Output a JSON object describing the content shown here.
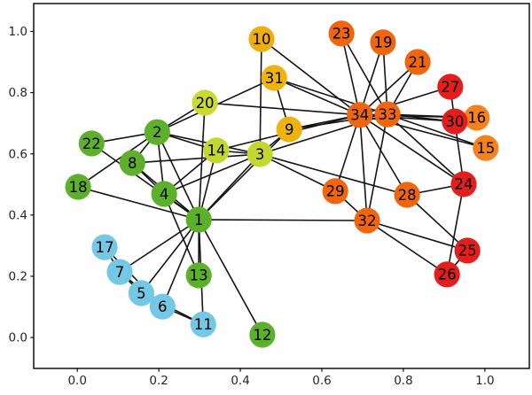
{
  "figure": {
    "background": "#ffffff",
    "axes_color": "#000000",
    "tick_label_color": "#262626"
  },
  "chart_data": {
    "type": "scatter",
    "subtype": "network_graph",
    "title": "",
    "xlabel": "",
    "ylabel": "",
    "grid": false,
    "legend": "none",
    "xlim": [
      -0.107,
      1.109
    ],
    "ylim": [
      -0.101,
      1.091
    ],
    "x_tick_values": [
      0.0,
      0.2,
      0.4,
      0.6,
      0.8,
      1.0
    ],
    "x_tick_labels": [
      "0.0",
      "0.2",
      "0.4",
      "0.6",
      "0.8",
      "1.0"
    ],
    "y_tick_values": [
      0.0,
      0.2,
      0.4,
      0.6,
      0.8,
      1.0
    ],
    "y_tick_labels": [
      "0.0",
      "0.2",
      "0.4",
      "0.6",
      "0.8",
      "1.0"
    ],
    "edge_color": "#141414",
    "node_label_color": "#000000",
    "nodes": [
      {
        "id": 1,
        "label": "1",
        "x": 0.298,
        "y": 0.385,
        "color": "#5db02c"
      },
      {
        "id": 2,
        "label": "2",
        "x": 0.196,
        "y": 0.671,
        "color": "#5db02c"
      },
      {
        "id": 3,
        "label": "3",
        "x": 0.448,
        "y": 0.599,
        "color": "#c3d731"
      },
      {
        "id": 4,
        "label": "4",
        "x": 0.213,
        "y": 0.469,
        "color": "#5db02c"
      },
      {
        "id": 5,
        "label": "5",
        "x": 0.157,
        "y": 0.145,
        "color": "#74c8e6"
      },
      {
        "id": 6,
        "label": "6",
        "x": 0.209,
        "y": 0.101,
        "color": "#74c8e6"
      },
      {
        "id": 7,
        "label": "7",
        "x": 0.104,
        "y": 0.214,
        "color": "#74c8e6"
      },
      {
        "id": 8,
        "label": "8",
        "x": 0.135,
        "y": 0.57,
        "color": "#5db02c"
      },
      {
        "id": 9,
        "label": "9",
        "x": 0.52,
        "y": 0.68,
        "color": "#eeb30f"
      },
      {
        "id": 10,
        "label": "10",
        "x": 0.452,
        "y": 0.975,
        "color": "#eeae10"
      },
      {
        "id": 11,
        "label": "11",
        "x": 0.309,
        "y": 0.043,
        "color": "#74c8e6"
      },
      {
        "id": 12,
        "label": "12",
        "x": 0.454,
        "y": 0.009,
        "color": "#5db02c"
      },
      {
        "id": 13,
        "label": "13",
        "x": 0.298,
        "y": 0.203,
        "color": "#5db02c"
      },
      {
        "id": 14,
        "label": "14",
        "x": 0.341,
        "y": 0.611,
        "color": "#c3d731"
      },
      {
        "id": 15,
        "label": "15",
        "x": 1.002,
        "y": 0.619,
        "color": "#f5821a"
      },
      {
        "id": 16,
        "label": "16",
        "x": 0.98,
        "y": 0.718,
        "color": "#f5821a"
      },
      {
        "id": 17,
        "label": "17",
        "x": 0.067,
        "y": 0.295,
        "color": "#74c8e6"
      },
      {
        "id": 18,
        "label": "18",
        "x": 0.002,
        "y": 0.492,
        "color": "#5db02c"
      },
      {
        "id": 19,
        "label": "19",
        "x": 0.75,
        "y": 0.964,
        "color": "#f1650e"
      },
      {
        "id": 20,
        "label": "20",
        "x": 0.313,
        "y": 0.767,
        "color": "#c9da33"
      },
      {
        "id": 21,
        "label": "21",
        "x": 0.835,
        "y": 0.9,
        "color": "#f1650e"
      },
      {
        "id": 22,
        "label": "22",
        "x": 0.035,
        "y": 0.634,
        "color": "#5db02c"
      },
      {
        "id": 23,
        "label": "23",
        "x": 0.648,
        "y": 0.993,
        "color": "#f1650e"
      },
      {
        "id": 24,
        "label": "24",
        "x": 0.948,
        "y": 0.501,
        "color": "#e41d1d"
      },
      {
        "id": 25,
        "label": "25",
        "x": 0.957,
        "y": 0.284,
        "color": "#e41d1d"
      },
      {
        "id": 26,
        "label": "26",
        "x": 0.907,
        "y": 0.206,
        "color": "#e41d1d"
      },
      {
        "id": 27,
        "label": "27",
        "x": 0.915,
        "y": 0.819,
        "color": "#e41d1d"
      },
      {
        "id": 28,
        "label": "28",
        "x": 0.809,
        "y": 0.466,
        "color": "#f1650e"
      },
      {
        "id": 29,
        "label": "29",
        "x": 0.633,
        "y": 0.478,
        "color": "#f1650e"
      },
      {
        "id": 30,
        "label": "30",
        "x": 0.926,
        "y": 0.706,
        "color": "#e41d1d"
      },
      {
        "id": 31,
        "label": "31",
        "x": 0.483,
        "y": 0.848,
        "color": "#eeb30f"
      },
      {
        "id": 32,
        "label": "32",
        "x": 0.711,
        "y": 0.382,
        "color": "#f1650e"
      },
      {
        "id": 33,
        "label": "33",
        "x": 0.761,
        "y": 0.729,
        "color": "#f1650e"
      },
      {
        "id": 34,
        "label": "34",
        "x": 0.693,
        "y": 0.727,
        "color": "#f1650e"
      }
    ],
    "edges": [
      [
        1,
        2
      ],
      [
        1,
        3
      ],
      [
        1,
        4
      ],
      [
        1,
        5
      ],
      [
        1,
        6
      ],
      [
        1,
        7
      ],
      [
        1,
        8
      ],
      [
        1,
        9
      ],
      [
        1,
        11
      ],
      [
        1,
        12
      ],
      [
        1,
        13
      ],
      [
        1,
        14
      ],
      [
        1,
        18
      ],
      [
        1,
        20
      ],
      [
        1,
        22
      ],
      [
        1,
        32
      ],
      [
        2,
        3
      ],
      [
        2,
        4
      ],
      [
        2,
        8
      ],
      [
        2,
        14
      ],
      [
        2,
        18
      ],
      [
        2,
        20
      ],
      [
        2,
        22
      ],
      [
        2,
        31
      ],
      [
        3,
        4
      ],
      [
        3,
        8
      ],
      [
        3,
        9
      ],
      [
        3,
        10
      ],
      [
        3,
        14
      ],
      [
        3,
        28
      ],
      [
        3,
        29
      ],
      [
        3,
        33
      ],
      [
        4,
        8
      ],
      [
        4,
        13
      ],
      [
        4,
        14
      ],
      [
        5,
        7
      ],
      [
        5,
        11
      ],
      [
        6,
        7
      ],
      [
        6,
        11
      ],
      [
        6,
        17
      ],
      [
        7,
        17
      ],
      [
        9,
        31
      ],
      [
        9,
        33
      ],
      [
        9,
        34
      ],
      [
        10,
        34
      ],
      [
        14,
        34
      ],
      [
        15,
        33
      ],
      [
        15,
        34
      ],
      [
        16,
        33
      ],
      [
        16,
        34
      ],
      [
        19,
        33
      ],
      [
        19,
        34
      ],
      [
        20,
        34
      ],
      [
        21,
        33
      ],
      [
        21,
        34
      ],
      [
        23,
        33
      ],
      [
        23,
        34
      ],
      [
        24,
        26
      ],
      [
        24,
        28
      ],
      [
        24,
        30
      ],
      [
        24,
        33
      ],
      [
        24,
        34
      ],
      [
        25,
        26
      ],
      [
        25,
        28
      ],
      [
        25,
        32
      ],
      [
        26,
        32
      ],
      [
        27,
        30
      ],
      [
        27,
        34
      ],
      [
        28,
        34
      ],
      [
        29,
        32
      ],
      [
        29,
        34
      ],
      [
        30,
        33
      ],
      [
        30,
        34
      ],
      [
        31,
        33
      ],
      [
        31,
        34
      ],
      [
        32,
        33
      ],
      [
        32,
        34
      ],
      [
        33,
        34
      ]
    ]
  }
}
